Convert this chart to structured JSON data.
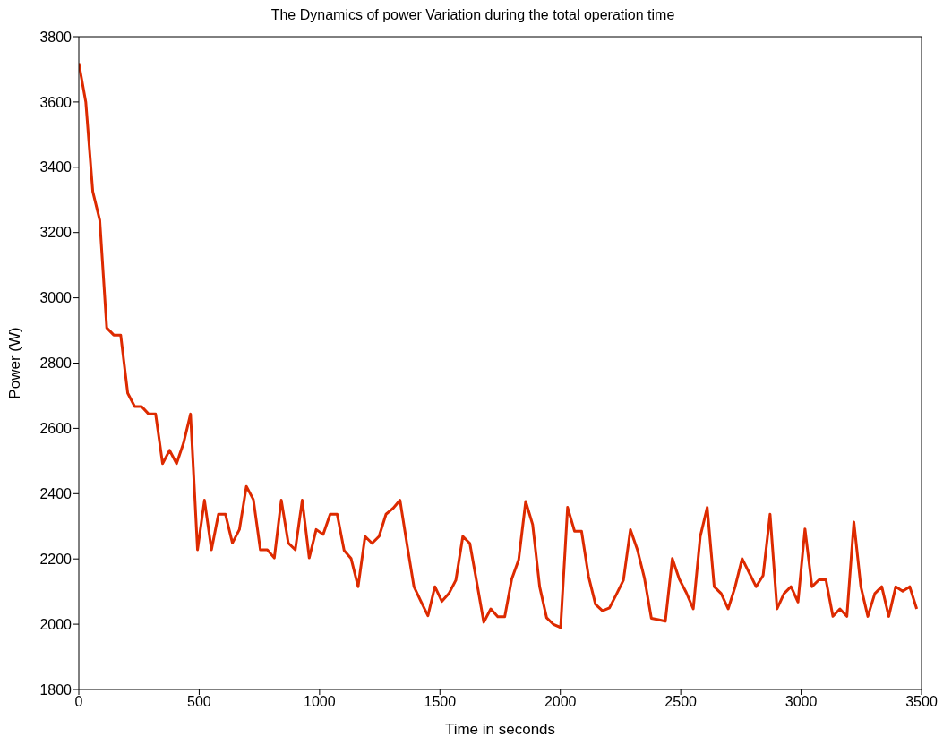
{
  "chart_data": {
    "type": "line",
    "title": "The Dynamics of power Variation during the total operation time",
    "xlabel": "Time in seconds",
    "ylabel": "Power (W)",
    "x": [
      0,
      29,
      58,
      87,
      116,
      145,
      174,
      203,
      232,
      261,
      290,
      319,
      348,
      377,
      406,
      435,
      464,
      493,
      522,
      551,
      580,
      609,
      638,
      667,
      696,
      725,
      754,
      783,
      812,
      841,
      870,
      899,
      928,
      957,
      986,
      1015,
      1044,
      1073,
      1102,
      1131,
      1160,
      1189,
      1218,
      1247,
      1276,
      1305,
      1334,
      1363,
      1392,
      1421,
      1450,
      1479,
      1508,
      1537,
      1566,
      1595,
      1624,
      1653,
      1682,
      1711,
      1740,
      1769,
      1798,
      1827,
      1856,
      1885,
      1914,
      1943,
      1972,
      2001,
      2030,
      2059,
      2088,
      2117,
      2146,
      2175,
      2204,
      2233,
      2262,
      2291,
      2320,
      2349,
      2378,
      2407,
      2436,
      2465,
      2494,
      2523,
      2552,
      2581,
      2610,
      2639,
      2668,
      2697,
      2726,
      2755,
      2784,
      2813,
      2842,
      2871,
      2900,
      2929,
      2958,
      2987,
      3016,
      3045,
      3074,
      3103,
      3132,
      3161,
      3190,
      3219,
      3248,
      3277,
      3306,
      3335,
      3364,
      3393,
      3422,
      3451,
      3480
    ],
    "series": [
      {
        "color": "#dd2a00",
        "values": [
          3719,
          3600,
          3326,
          3238,
          2908,
          2886,
          2886,
          2708,
          2667,
          2667,
          2644,
          2644,
          2492,
          2533,
          2492,
          2555,
          2644,
          2228,
          2380,
          2228,
          2337,
          2337,
          2249,
          2290,
          2422,
          2382,
          2228,
          2228,
          2203,
          2380,
          2249,
          2228,
          2380,
          2203,
          2290,
          2275,
          2337,
          2337,
          2226,
          2201,
          2115,
          2269,
          2248,
          2269,
          2337,
          2355,
          2380,
          2245,
          2115,
          2070,
          2026,
          2115,
          2070,
          2094,
          2135,
          2269,
          2248,
          2128,
          2006,
          2047,
          2023,
          2023,
          2138,
          2198,
          2376,
          2305,
          2115,
          2020,
          1999,
          1990,
          2358,
          2285,
          2285,
          2147,
          2061,
          2041,
          2050,
          2092,
          2135,
          2290,
          2228,
          2142,
          2018,
          2014,
          2009,
          2201,
          2138,
          2097,
          2047,
          2269,
          2358,
          2115,
          2094,
          2047,
          2115,
          2201,
          2158,
          2115,
          2149,
          2337,
          2047,
          2094,
          2115,
          2068,
          2292,
          2115,
          2136,
          2136,
          2024,
          2047,
          2024,
          2313,
          2115,
          2024,
          2094,
          2115,
          2024,
          2115,
          2101,
          2115,
          2047
        ]
      }
    ],
    "xlim": [
      0,
      3500
    ],
    "xticks": [
      0,
      500,
      1000,
      1500,
      2000,
      2500,
      3000,
      3500
    ],
    "ylim": [
      1800,
      3800
    ],
    "yticks": [
      1800,
      2000,
      2200,
      2400,
      2600,
      2800,
      3000,
      3200,
      3400,
      3600,
      3800
    ],
    "grid": false,
    "legend": false,
    "marker": "none",
    "line_style": "solid"
  }
}
